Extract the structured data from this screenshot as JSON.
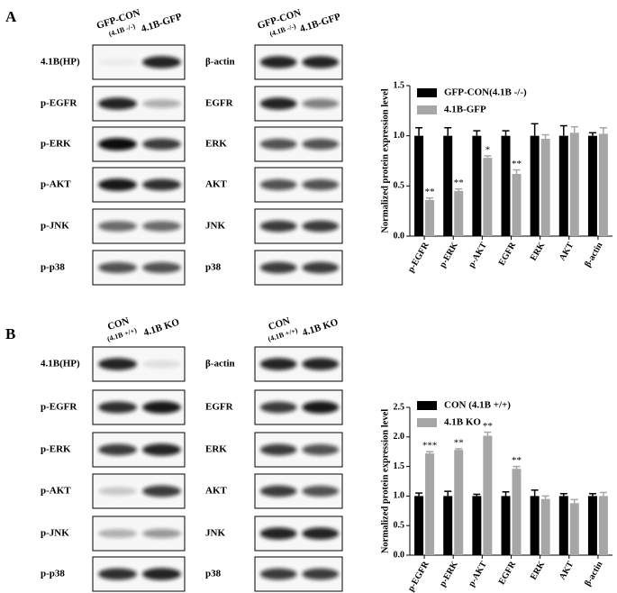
{
  "panels": [
    {
      "letter": "A",
      "left_headers": [
        "GFP-CON",
        "(4.1B -/-)",
        "4.1B-GFP"
      ],
      "right_headers": [
        "GFP-CON",
        "(4.1B -/-)",
        "4.1B-GFP"
      ],
      "left_labels": [
        "4.1B(HP)",
        "p-EGFR",
        "p-ERK",
        "p-AKT",
        "p-JNK",
        "p-p38"
      ],
      "right_labels": [
        "β-actin",
        "EGFR",
        "ERK",
        "AKT",
        "JNK",
        "p38"
      ]
    },
    {
      "letter": "B",
      "left_headers": [
        "CON",
        "(4.1B +/+)",
        "4.1B KO"
      ],
      "right_headers": [
        "CON",
        "(4.1B +/+)",
        "4.1B KO"
      ],
      "left_labels": [
        "4.1B(HP)",
        "p-EGFR",
        "p-ERK",
        "p-AKT",
        "p-JNK",
        "p-p38"
      ],
      "right_labels": [
        "β-actin",
        "EGFR",
        "ERK",
        "AKT",
        "JNK",
        "p38"
      ]
    }
  ],
  "chart_data": [
    {
      "type": "bar",
      "y_label": "Normalized protein expression level",
      "categories": [
        "p-EGFR",
        "p-ERK",
        "p-AKT",
        "EGFR",
        "ERK",
        "AKT",
        "β-actin"
      ],
      "series": [
        {
          "name": "GFP-CON(4.1B -/-)",
          "color": "#000000",
          "values": [
            1.0,
            1.0,
            1.0,
            1.0,
            1.0,
            1.0,
            1.0
          ],
          "errors": [
            0.08,
            0.08,
            0.05,
            0.05,
            0.12,
            0.1,
            0.03
          ]
        },
        {
          "name": "4.1B-GFP",
          "color": "#a6a6a6",
          "values": [
            0.36,
            0.45,
            0.78,
            0.62,
            0.97,
            1.03,
            1.02
          ],
          "errors": [
            0.02,
            0.02,
            0.02,
            0.04,
            0.04,
            0.06,
            0.06
          ],
          "significance": [
            "**",
            "**",
            "*",
            "**",
            null,
            null,
            null
          ]
        }
      ],
      "ylim": [
        0,
        1.5
      ],
      "yticks": [
        {
          "value": 0,
          "label": "0.0"
        },
        0.5,
        {
          "value": 1,
          "label": "1.0"
        },
        1.5
      ],
      "legend": "upper-left"
    },
    {
      "type": "bar",
      "y_label": "Normalized protein expression level",
      "categories": [
        "p-EGFR",
        "p-ERK",
        "p-AKT",
        "EGFR",
        "ERK",
        "AKT",
        "β-actin"
      ],
      "series": [
        {
          "name": "CON (4.1B +/+)",
          "color": "#000000",
          "values": [
            1.0,
            1.0,
            1.0,
            1.0,
            1.0,
            1.0,
            1.0
          ],
          "errors": [
            0.05,
            0.08,
            0.03,
            0.07,
            0.1,
            0.04,
            0.04
          ]
        },
        {
          "name": "4.1B KO",
          "color": "#a6a6a6",
          "values": [
            1.72,
            1.78,
            2.02,
            1.46,
            0.95,
            0.88,
            1.0
          ],
          "errors": [
            0.03,
            0.02,
            0.06,
            0.04,
            0.05,
            0.06,
            0.06
          ],
          "significance": [
            "***",
            "**",
            "**",
            "**",
            null,
            null,
            null
          ]
        }
      ],
      "ylim": [
        0,
        2.5
      ],
      "yticks": [
        {
          "value": 0,
          "label": "0.0"
        },
        0.5,
        {
          "value": 1,
          "label": "1.0"
        },
        1.5,
        {
          "value": 2,
          "label": "2.0"
        },
        2.5
      ],
      "legend": "upper-left"
    }
  ]
}
